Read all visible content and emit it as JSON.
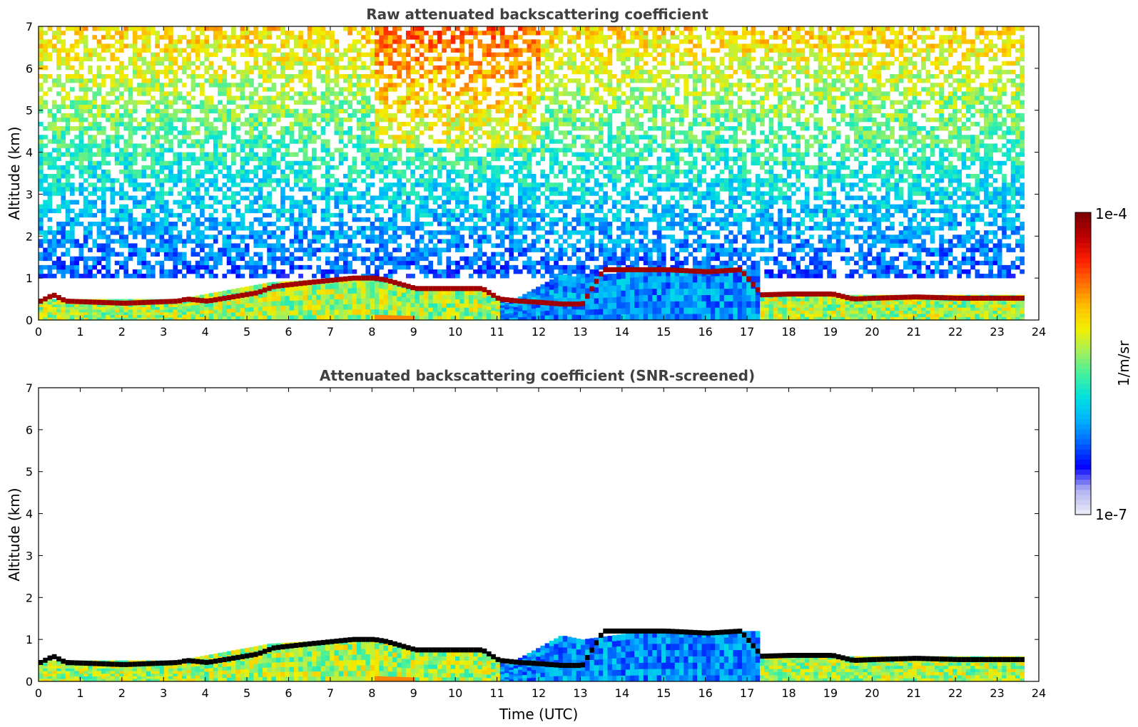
{
  "chart_data": [
    {
      "type": "heatmap",
      "title": "Raw attenuated backscattering coefficient",
      "xlabel": "",
      "ylabel": "Altitude (km)",
      "xlim": [
        0,
        24
      ],
      "ylim": [
        0,
        7
      ],
      "xticks": [
        "0",
        "1",
        "2",
        "3",
        "4",
        "5",
        "6",
        "7",
        "8",
        "9",
        "10",
        "11",
        "12",
        "13",
        "14",
        "15",
        "16",
        "17",
        "18",
        "19",
        "20",
        "21",
        "22",
        "23",
        "24"
      ],
      "yticks": [
        "0",
        "1",
        "2",
        "3",
        "4",
        "5",
        "6",
        "7"
      ],
      "data_end_hour": 23.65,
      "screened": false,
      "cloud_base_km": [
        [
          0.0,
          0.45
        ],
        [
          0.3,
          0.6
        ],
        [
          0.6,
          0.45
        ],
        [
          2.0,
          0.4
        ],
        [
          3.3,
          0.45
        ],
        [
          3.5,
          0.5
        ],
        [
          4.0,
          0.45
        ],
        [
          4.6,
          0.55
        ],
        [
          5.2,
          0.65
        ],
        [
          5.6,
          0.8
        ],
        [
          6.5,
          0.9
        ],
        [
          7.5,
          1.0
        ],
        [
          8.0,
          1.0
        ],
        [
          8.3,
          0.95
        ],
        [
          9.0,
          0.75
        ],
        [
          9.4,
          0.75
        ],
        [
          10.0,
          0.75
        ],
        [
          10.6,
          0.75
        ],
        [
          11.0,
          0.5
        ],
        [
          11.5,
          0.45
        ],
        [
          12.0,
          0.42
        ],
        [
          12.5,
          0.38
        ],
        [
          13.0,
          0.38
        ],
        [
          13.5,
          1.2
        ],
        [
          14.5,
          1.2
        ],
        [
          15.0,
          1.2
        ],
        [
          16.0,
          1.15
        ],
        [
          16.8,
          1.2
        ],
        [
          17.3,
          0.6
        ],
        [
          18.0,
          0.62
        ],
        [
          19.0,
          0.62
        ],
        [
          19.5,
          0.5
        ],
        [
          20.0,
          0.52
        ],
        [
          21.0,
          0.55
        ],
        [
          22.0,
          0.52
        ],
        [
          23.0,
          0.52
        ],
        [
          23.65,
          0.52
        ]
      ],
      "boundary_layer_top_km": [
        [
          0.0,
          0.5
        ],
        [
          3.3,
          0.5
        ],
        [
          5.5,
          0.9
        ],
        [
          8.0,
          1.05
        ],
        [
          9.0,
          0.8
        ],
        [
          10.5,
          0.8
        ],
        [
          11.2,
          0.4
        ],
        [
          12.5,
          1.1
        ],
        [
          13.0,
          1.0
        ],
        [
          14.5,
          1.2
        ],
        [
          16.5,
          1.2
        ],
        [
          17.2,
          1.2
        ],
        [
          17.3,
          0.6
        ],
        [
          23.65,
          0.6
        ]
      ]
    },
    {
      "type": "heatmap",
      "title": "Attenuated backscattering coefficient (SNR-screened)",
      "xlabel": "Time (UTC)",
      "ylabel": "Altitude (km)",
      "xlim": [
        0,
        24
      ],
      "ylim": [
        0,
        7
      ],
      "xticks": [
        "0",
        "1",
        "2",
        "3",
        "4",
        "5",
        "6",
        "7",
        "8",
        "9",
        "10",
        "11",
        "12",
        "13",
        "14",
        "15",
        "16",
        "17",
        "18",
        "19",
        "20",
        "21",
        "22",
        "23",
        "24"
      ],
      "yticks": [
        "0",
        "1",
        "2",
        "3",
        "4",
        "5",
        "6",
        "7"
      ],
      "data_end_hour": 23.65,
      "screened": true
    }
  ],
  "colorbar": {
    "label": "1/m/sr",
    "max_label": "1e-4",
    "min_label": "1e-7",
    "colors": [
      "#e8e8f8",
      "#b0b0f0",
      "#0000ff",
      "#0060ff",
      "#00b0ff",
      "#00e0e0",
      "#40f0a0",
      "#a0f060",
      "#f0f000",
      "#ffc000",
      "#ff7000",
      "#ff2000",
      "#c00000",
      "#800000"
    ]
  }
}
